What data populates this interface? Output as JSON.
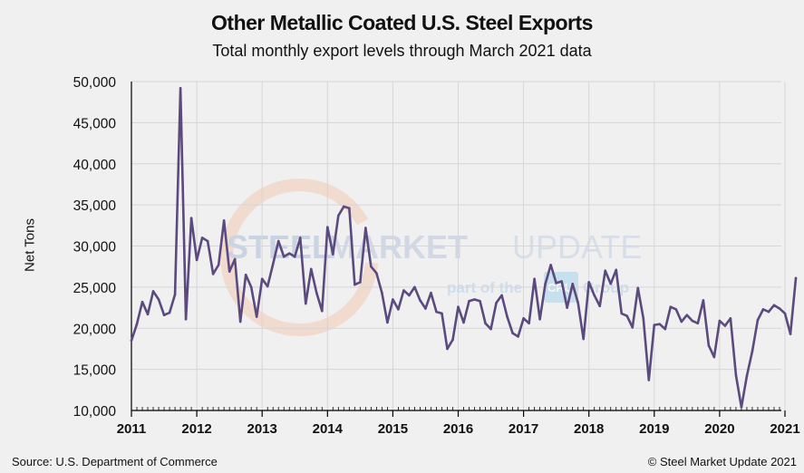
{
  "chart_data": {
    "type": "line",
    "title": "Other Metallic Coated U.S. Steel Exports",
    "subtitle": "Total monthly export levels through March 2021 data",
    "xlabel": "",
    "ylabel": "Net Tons",
    "ylim": [
      10000,
      50000
    ],
    "yticks": [
      "10,000",
      "15,000",
      "20,000",
      "25,000",
      "30,000",
      "35,000",
      "40,000",
      "45,000",
      "50,000"
    ],
    "ytick_values": [
      10000,
      15000,
      20000,
      25000,
      30000,
      35000,
      40000,
      45000,
      50000
    ],
    "xticks": [
      "2011",
      "2012",
      "2013",
      "2014",
      "2015",
      "2016",
      "2017",
      "2018",
      "2019",
      "2020",
      "2021"
    ],
    "x_start": "2011-01",
    "x_frequency": "monthly",
    "grid": true,
    "legend": "none",
    "line_color": "#5b4a7e",
    "series": [
      {
        "name": "Other Metallic Coated U.S. Steel Exports",
        "values": [
          18500,
          20500,
          23200,
          21700,
          24500,
          23500,
          21600,
          21900,
          24100,
          49200,
          21100,
          33400,
          28300,
          31000,
          30600,
          26600,
          27700,
          33100,
          26900,
          28400,
          20800,
          26500,
          25000,
          21400,
          26000,
          25100,
          27800,
          30600,
          28700,
          29100,
          28700,
          31000,
          23000,
          27200,
          24300,
          22100,
          32300,
          29000,
          33700,
          34800,
          34600,
          25300,
          25600,
          32200,
          27500,
          26700,
          24300,
          20700,
          23500,
          22300,
          24600,
          24000,
          25000,
          23400,
          22400,
          24300,
          22000,
          21800,
          17500,
          18600,
          22600,
          20700,
          23300,
          23500,
          23300,
          20600,
          19900,
          23100,
          24000,
          21400,
          19400,
          19000,
          21200,
          20600,
          26000,
          21100,
          25400,
          27700,
          25500,
          25700,
          22500,
          25400,
          23100,
          18700,
          25600,
          24000,
          22700,
          27000,
          25400,
          27100,
          21800,
          21500,
          20100,
          24900,
          21200,
          13700,
          20400,
          20500,
          19900,
          22600,
          22300,
          20800,
          21600,
          20900,
          20600,
          23400,
          17900,
          16500,
          20900,
          20300,
          21200,
          14300,
          10400,
          14200,
          17200,
          21000,
          22300,
          22000,
          22800,
          22400,
          21800,
          19300,
          26100
        ]
      }
    ]
  },
  "watermark": {
    "brand_part1": "STEEL",
    "brand_part2": "MARKET",
    "brand_part3": "UPDATE",
    "tagline_left": "part of the",
    "tagline_logo": "CRU",
    "tagline_right": "Group"
  },
  "footer": {
    "source": "Source: U.S. Department of Commerce",
    "copyright": "© Steel Market Update 2021"
  }
}
